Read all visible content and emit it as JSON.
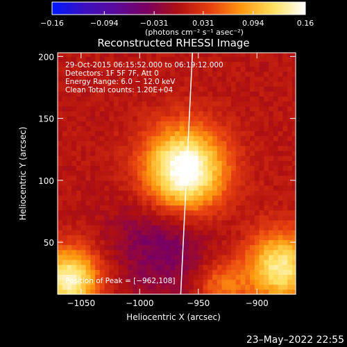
{
  "chart_data": {
    "type": "heatmap",
    "title": "Reconstructed RHESSI Image",
    "xlabel": "Heliocentric X (arcsec)",
    "ylabel": "Heliocentric Y (arcsec)",
    "xlim": [
      -1070,
      -867
    ],
    "ylim": [
      8,
      203
    ],
    "xticks": [
      -1050,
      -1000,
      -950,
      -900
    ],
    "xtick_labels": [
      "−1050",
      "−1000",
      "−950",
      "−900"
    ],
    "yticks": [
      50,
      100,
      150,
      200
    ],
    "ytick_labels": [
      "50",
      "100",
      "150",
      "200"
    ],
    "colorbar": {
      "range": [
        -0.16,
        0.16
      ],
      "ticks": [
        -0.16,
        -0.094,
        -0.031,
        0.031,
        0.094,
        0.16
      ],
      "tick_labels": [
        "−0.16",
        "−0.094",
        "−0.031",
        "0.031",
        "0.094",
        "0.16"
      ],
      "units_label": "(photons cm⁻² s⁻¹ asec⁻²)",
      "colormap": [
        "#0018ff",
        "#3a10c0",
        "#5a0a9a",
        "#7a0060",
        "#b01010",
        "#e84010",
        "#ff9a10",
        "#ffe060",
        "#ffffff"
      ]
    },
    "peak": {
      "x": -962,
      "y": 108
    },
    "limb_line": {
      "x_top": -955,
      "y_top": 203,
      "x_bottom": -965,
      "y_bottom": 8
    },
    "info_lines": [
      "29-Oct-2015 06:15:52.000 to 06:19:12.000",
      "Detectors: 1F 5F 7F, Att 0",
      "Energy Range: 6.0 − 12.0 keV",
      "Clean    Total counts: 1.20E+04"
    ],
    "peak_label": "Position of Peak = [−962,108]"
  },
  "date_stamp": "23–May–2022 22:55"
}
